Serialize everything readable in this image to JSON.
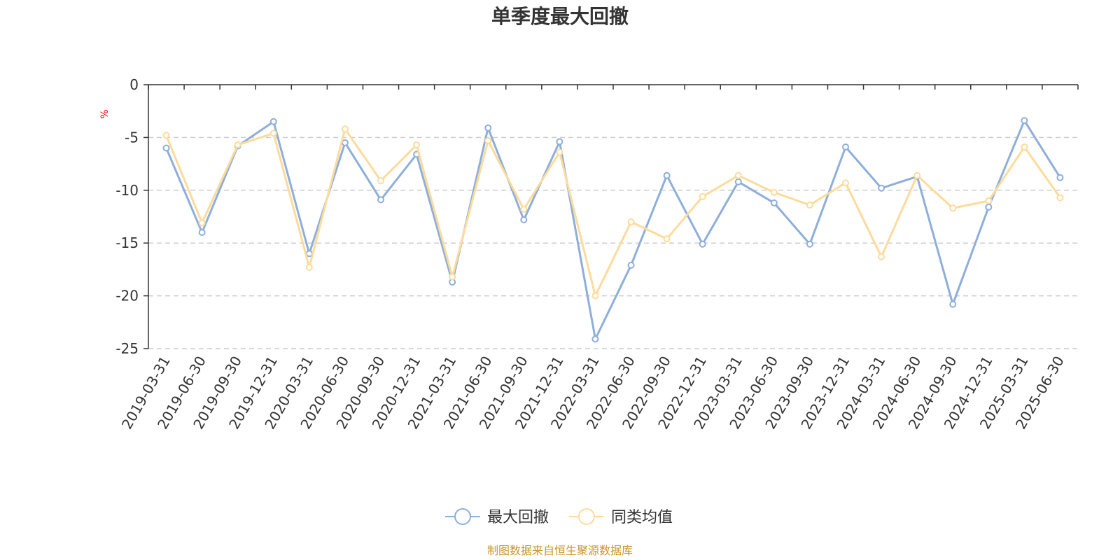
{
  "chart_data": {
    "type": "line",
    "title": "单季度最大回撤",
    "ylabel": "%",
    "ylim": [
      -25,
      0
    ],
    "yticks": [
      0,
      -5,
      -10,
      -15,
      -20,
      -25
    ],
    "grid": true,
    "legend_position": "bottom",
    "categories": [
      "2019-03-31",
      "2019-06-30",
      "2019-09-30",
      "2019-12-31",
      "2020-03-31",
      "2020-06-30",
      "2020-09-30",
      "2020-12-31",
      "2021-03-31",
      "2021-06-30",
      "2021-09-30",
      "2021-12-31",
      "2022-03-31",
      "2022-06-30",
      "2022-09-30",
      "2022-12-31",
      "2023-03-31",
      "2023-06-30",
      "2023-09-30",
      "2023-12-31",
      "2024-03-31",
      "2024-06-30",
      "2024-09-30",
      "2024-12-31",
      "2025-03-31",
      "2025-06-30"
    ],
    "series": [
      {
        "name": "最大回撤",
        "color": "#8eaedb",
        "values": [
          -6.0,
          -14.0,
          -5.8,
          -3.5,
          -16.0,
          -5.5,
          -10.9,
          -6.6,
          -18.7,
          -4.1,
          -12.8,
          -5.4,
          -24.1,
          -17.1,
          -8.6,
          -15.1,
          -9.2,
          -11.2,
          -15.1,
          -5.9,
          -9.8,
          -8.7,
          -20.8,
          -11.6,
          -3.4,
          -8.8
        ]
      },
      {
        "name": "同类均值",
        "color": "#fcdb9b",
        "values": [
          -4.8,
          -13.1,
          -5.7,
          -4.6,
          -17.3,
          -4.2,
          -9.1,
          -5.7,
          -18.2,
          -5.3,
          -11.8,
          -6.4,
          -20.0,
          -13.0,
          -14.6,
          -10.6,
          -8.6,
          -10.2,
          -11.4,
          -9.3,
          -16.3,
          -8.6,
          -11.7,
          -11.0,
          -5.9,
          -10.7
        ]
      }
    ]
  },
  "footer": {
    "source": "制图数据来自恒生聚源数据库"
  }
}
